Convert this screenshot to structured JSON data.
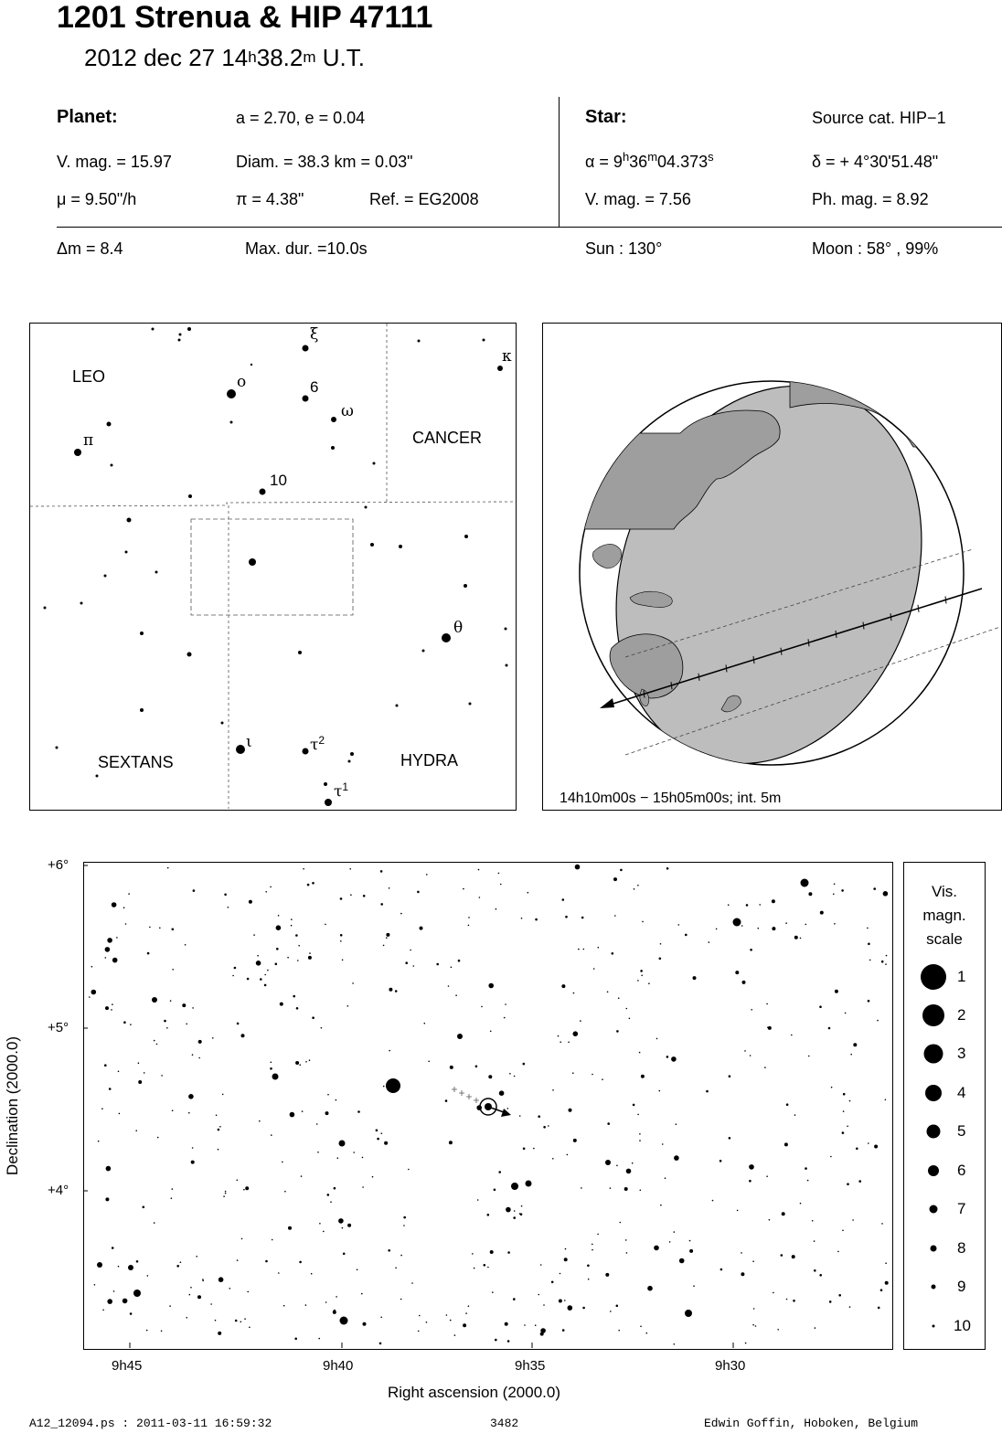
{
  "header": {
    "title": "1201 Strenua  &  HIP 47111",
    "date": "2012 dec 27  14",
    "time_h": "h",
    "time_min": "38.2",
    "time_m": "m",
    "time_tz": " U.T."
  },
  "planet": {
    "heading": "Planet:",
    "orbit": "a = 2.70, e = 0.04",
    "vmag": "V. mag. = 15.97",
    "diam": "Diam. = 38.3 km = 0.03\"",
    "mu": "μ =  9.50\"/h",
    "pi": "π =  4.38\"",
    "ref": "Ref. = EG2008"
  },
  "star": {
    "heading": "Star:",
    "source": "Source cat.  HIP−1",
    "alpha_prefix": "α =  9",
    "alpha_h": "h",
    "alpha_mid": "36",
    "alpha_m": "m",
    "alpha_sec": "04.373",
    "alpha_s": "s",
    "delta": "δ = + 4°30'51.48\"",
    "vmag": "V. mag. =  7.56",
    "phmag": "Ph. mag. =  8.92"
  },
  "event": {
    "dm": "Δm = 8.4",
    "maxdur": "Max. dur. =10.0s",
    "sun": "Sun : 130°",
    "moon": "Moon :  58° , 99%"
  },
  "finder": {
    "constellations": [
      "LEO",
      "CANCER",
      "SEXTANS",
      "HYDRA"
    ],
    "star_labels": {
      "xi": "ξ",
      "kappa": "κ",
      "omicron": "o",
      "six": "6",
      "omega": "ω",
      "pi": "π",
      "ten": "10",
      "theta": "θ",
      "iota": "ι",
      "tau": "τ",
      "tau2_num": "2",
      "tau1_num": "1"
    }
  },
  "globe": {
    "caption": "14h10m00s − 15h05m00s; int.  5m"
  },
  "detail_chart": {
    "dec_ticks": [
      "+6°",
      "+5°",
      "+4°"
    ],
    "ra_ticks": [
      "9h45",
      "9h40",
      "9h35",
      "9h30"
    ],
    "xlabel": "Right ascension (2000.0)",
    "ylabel": "Declination (2000.0)"
  },
  "mag_scale": {
    "title_lines": [
      "Vis.",
      "magn.",
      "scale"
    ],
    "levels": [
      "1",
      "2",
      "3",
      "4",
      "5",
      "6",
      "7",
      "8",
      "9",
      "10"
    ]
  },
  "footer": {
    "file": "A12_12094.ps : 2011-03-11 16:59:32",
    "number": "3482",
    "author": "Edwin Goffin, Hoboken, Belgium"
  }
}
